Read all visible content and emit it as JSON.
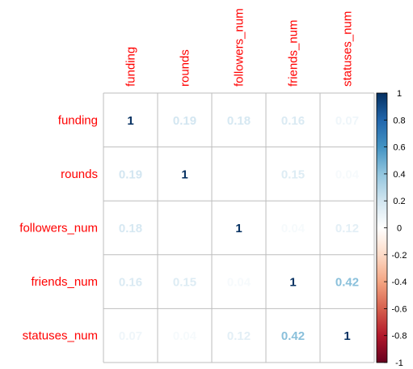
{
  "chart_data": {
    "type": "heatmap",
    "title": "",
    "variables": [
      "funding",
      "rounds",
      "followers_num",
      "friends_num",
      "statuses_num"
    ],
    "matrix": [
      [
        1.0,
        0.19,
        0.18,
        0.16,
        0.07
      ],
      [
        0.19,
        1.0,
        0.0,
        0.15,
        0.04
      ],
      [
        0.18,
        0.0,
        1.0,
        0.04,
        0.12
      ],
      [
        0.16,
        0.15,
        0.04,
        1.0,
        0.42
      ],
      [
        0.07,
        0.04,
        0.12,
        0.42,
        1.0
      ]
    ],
    "cell_labels": [
      [
        "1",
        "0.19",
        "0.18",
        "0.16",
        "0.07"
      ],
      [
        "0.19",
        "1",
        "",
        "0.15",
        "0.04"
      ],
      [
        "0.18",
        "",
        "1",
        "0.04",
        "0.12"
      ],
      [
        "0.16",
        "0.15",
        "0.04",
        "1",
        "0.42"
      ],
      [
        "0.07",
        "0.04",
        "0.12",
        "0.42",
        "1"
      ]
    ],
    "colorbar": {
      "range": [
        -1,
        1
      ],
      "ticks": [
        "1",
        "0.8",
        "0.6",
        "0.4",
        "0.2",
        "0",
        "-0.2",
        "-0.4",
        "-0.6",
        "-0.8",
        "-1"
      ],
      "placement": "right"
    },
    "label_color": "#ff0000",
    "grid": true
  }
}
